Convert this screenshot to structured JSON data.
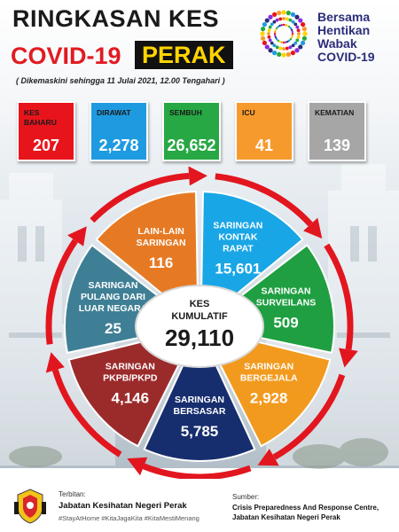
{
  "header": {
    "title_line1": "RINGKASAN KES",
    "title_covid": "COVID-19",
    "title_state": "PERAK",
    "updated": "( Dikemaskini  sehingga 11 Julai 2021, 12.00 Tengahari )"
  },
  "campaign": {
    "line1": "Bersama",
    "line2": "Hentikan",
    "line3": "Wabak",
    "line4": "COVID-19"
  },
  "stats": [
    {
      "label1": "KES",
      "label2": "BAHARU",
      "value": "207",
      "color": "#e8141c",
      "label_color": "#1a1a1a"
    },
    {
      "label1": "DIRAWAT",
      "label2": "",
      "value": "2,278",
      "color": "#1e9be0",
      "label_color": "#1a1a1a"
    },
    {
      "label1": "SEMBUH",
      "label2": "",
      "value": "26,652",
      "color": "#27a844",
      "label_color": "#1a1a1a"
    },
    {
      "label1": "ICU",
      "label2": "",
      "value": "41",
      "color": "#f79a2e",
      "label_color": "#1a1a1a"
    },
    {
      "label1": "KEMATIAN",
      "label2": "",
      "value": "139",
      "color": "#a6a6a6",
      "label_color": "#1a1a1a"
    }
  ],
  "center": {
    "line1": "KES",
    "line2": "KUMULATIF",
    "value": "29,110"
  },
  "segments": [
    {
      "lines": [
        "SARINGAN",
        "KONTAK",
        "RAPAT"
      ],
      "value": "15,601",
      "color": "#19a6e6",
      "label_color": "#ffffff"
    },
    {
      "lines": [
        "SARINGAN",
        "SURVEILANS"
      ],
      "value": "509",
      "color": "#1f9f41",
      "label_color": "#ffffff"
    },
    {
      "lines": [
        "SARINGAN",
        "BERGEJALA"
      ],
      "value": "2,928",
      "color": "#f29a1e",
      "label_color": "#ffffff"
    },
    {
      "lines": [
        "SARINGAN",
        "BERSASAR"
      ],
      "value": "5,785",
      "color": "#172e6e",
      "label_color": "#ffffff"
    },
    {
      "lines": [
        "SARINGAN",
        "PKPB/PKPD"
      ],
      "value": "4,146",
      "color": "#9b2b2b",
      "label_color": "#ffffff"
    },
    {
      "lines": [
        "SARINGAN",
        "PULANG DARI",
        "LUAR NEGARA"
      ],
      "value": "25",
      "color": "#3f7f95",
      "label_color": "#ffffff"
    },
    {
      "lines": [
        "LAIN-LAIN",
        "SARINGAN"
      ],
      "value": "116",
      "color": "#e67a24",
      "label_color": "#ffffff"
    }
  ],
  "footer": {
    "published_by": "Terbitan:",
    "publisher": "Jabatan Kesihatan Negeri Perak",
    "hashtags": "#StayAtHome #KitaJagaKita #KitaMestiMenang",
    "source_label": "Sumber:",
    "source_line1": "Crisis Preparedness And Response Centre,",
    "source_line2": "Jabatan Kesihatan Negeri Perak"
  },
  "colors": {
    "arrow": "#e2161f",
    "title_red": "#e11b22",
    "perak_yellow": "#ffd400"
  }
}
